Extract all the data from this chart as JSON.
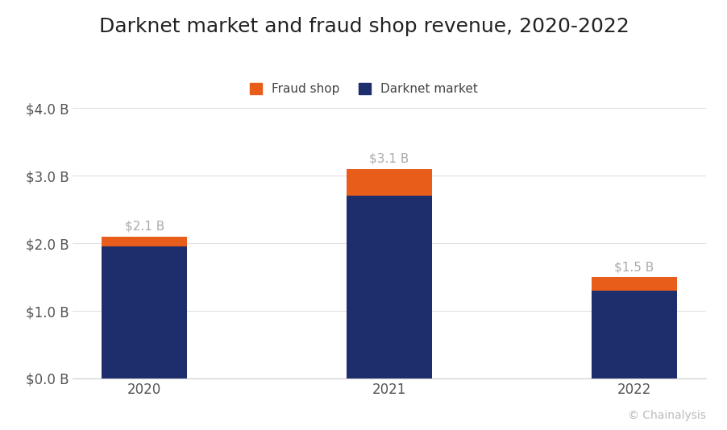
{
  "title": "Darknet market and fraud shop revenue, 2020-2022",
  "categories": [
    "2020",
    "2021",
    "2022"
  ],
  "darknet_values": [
    1.95,
    2.7,
    1.3
  ],
  "fraud_values": [
    0.15,
    0.4,
    0.2
  ],
  "totals_labels": [
    "$2.1 B",
    "$3.1 B",
    "$1.5 B"
  ],
  "darknet_color": "#1e2d6b",
  "fraud_color": "#e85d1a",
  "background_color": "#ffffff",
  "ylim": [
    0,
    4.2
  ],
  "yticks": [
    0.0,
    1.0,
    2.0,
    3.0,
    4.0
  ],
  "ytick_labels": [
    "$0.0 B",
    "$1.0 B",
    "$2.0 B",
    "$3.0 B",
    "$4.0 B"
  ],
  "legend_fraud": "Fraud shop",
  "legend_darknet": "Darknet market",
  "source_text": "© Chainalysis",
  "title_fontsize": 18,
  "axis_fontsize": 12,
  "label_fontsize": 11,
  "annotation_fontsize": 11,
  "bar_width": 0.35
}
